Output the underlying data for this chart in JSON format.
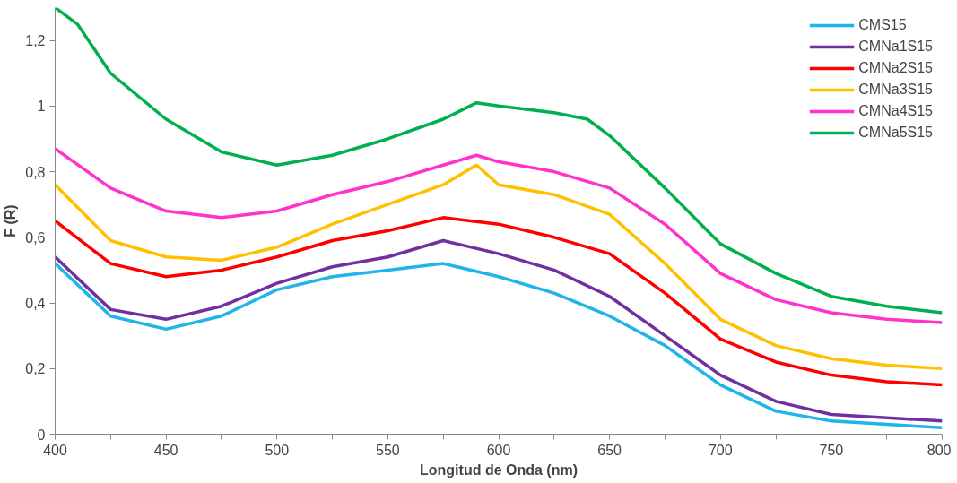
{
  "chart_data": {
    "type": "line",
    "xlabel": "Longitud de Onda (nm)",
    "ylabel": "F (R)",
    "xlim": [
      400,
      800
    ],
    "ylim": [
      0,
      1.3
    ],
    "xticks": [
      400,
      {
        "value": 425,
        "label": null
      },
      450,
      {
        "value": 475,
        "label": null
      },
      500,
      {
        "value": 525,
        "label": null
      },
      550,
      {
        "value": 575,
        "label": null
      },
      600,
      {
        "value": 625,
        "label": null
      },
      650,
      {
        "value": 675,
        "label": null
      },
      700,
      {
        "value": 725,
        "label": null
      },
      750,
      {
        "value": 775,
        "label": null
      },
      800
    ],
    "yticks": [
      0,
      {
        "value": 0.2,
        "label": "0,2"
      },
      {
        "value": 0.4,
        "label": "0,4"
      },
      {
        "value": 0.6,
        "label": "0,6"
      },
      {
        "value": 0.8,
        "label": "0,8"
      },
      1,
      {
        "value": 1.2,
        "label": "1,2"
      }
    ],
    "grid": false,
    "legend": "top right",
    "marker": "none",
    "line_style": "solid",
    "series": [
      {
        "name": "CMS15",
        "color": "#1fb5ea",
        "x": [
          400,
          425,
          450,
          475,
          500,
          525,
          550,
          575,
          600,
          625,
          650,
          675,
          700,
          725,
          750,
          775,
          800
        ],
        "values": [
          0.52,
          0.36,
          0.32,
          0.36,
          0.44,
          0.48,
          0.5,
          0.52,
          0.48,
          0.43,
          0.36,
          0.27,
          0.15,
          0.07,
          0.04,
          0.03,
          0.02
        ]
      },
      {
        "name": "CMNa1S15",
        "color": "#7030a0",
        "x": [
          400,
          425,
          450,
          475,
          500,
          525,
          550,
          575,
          600,
          625,
          650,
          675,
          700,
          725,
          750,
          775,
          800
        ],
        "values": [
          0.54,
          0.38,
          0.35,
          0.39,
          0.46,
          0.51,
          0.54,
          0.59,
          0.55,
          0.5,
          0.42,
          0.3,
          0.18,
          0.1,
          0.06,
          0.05,
          0.04
        ]
      },
      {
        "name": "CMNa2S15",
        "color": "#ff0000",
        "x": [
          400,
          425,
          450,
          475,
          500,
          525,
          550,
          575,
          600,
          625,
          650,
          675,
          700,
          725,
          750,
          775,
          800
        ],
        "values": [
          0.65,
          0.52,
          0.48,
          0.5,
          0.54,
          0.59,
          0.62,
          0.66,
          0.64,
          0.6,
          0.55,
          0.43,
          0.29,
          0.22,
          0.18,
          0.16,
          0.15
        ]
      },
      {
        "name": "CMNa3S15",
        "color": "#ffc000",
        "x": [
          400,
          425,
          450,
          475,
          500,
          525,
          550,
          575,
          590,
          600,
          625,
          650,
          675,
          700,
          725,
          750,
          775,
          800
        ],
        "values": [
          0.76,
          0.59,
          0.54,
          0.53,
          0.57,
          0.64,
          0.7,
          0.76,
          0.82,
          0.76,
          0.73,
          0.67,
          0.52,
          0.35,
          0.27,
          0.23,
          0.21,
          0.2
        ]
      },
      {
        "name": "CMNa4S15",
        "color": "#ff33cc",
        "x": [
          400,
          425,
          450,
          475,
          500,
          525,
          550,
          575,
          590,
          600,
          625,
          650,
          675,
          700,
          725,
          750,
          775,
          800
        ],
        "values": [
          0.87,
          0.75,
          0.68,
          0.66,
          0.68,
          0.73,
          0.77,
          0.82,
          0.85,
          0.83,
          0.8,
          0.75,
          0.64,
          0.49,
          0.41,
          0.37,
          0.35,
          0.34
        ]
      },
      {
        "name": "CMNa5S15",
        "color": "#00b050",
        "x": [
          400,
          410,
          425,
          450,
          475,
          500,
          525,
          550,
          575,
          590,
          600,
          625,
          640,
          650,
          675,
          700,
          725,
          750,
          775,
          800
        ],
        "values": [
          1.3,
          1.25,
          1.1,
          0.96,
          0.86,
          0.82,
          0.85,
          0.9,
          0.96,
          1.01,
          1.0,
          0.98,
          0.96,
          0.91,
          0.75,
          0.58,
          0.49,
          0.42,
          0.39,
          0.37
        ]
      }
    ]
  }
}
